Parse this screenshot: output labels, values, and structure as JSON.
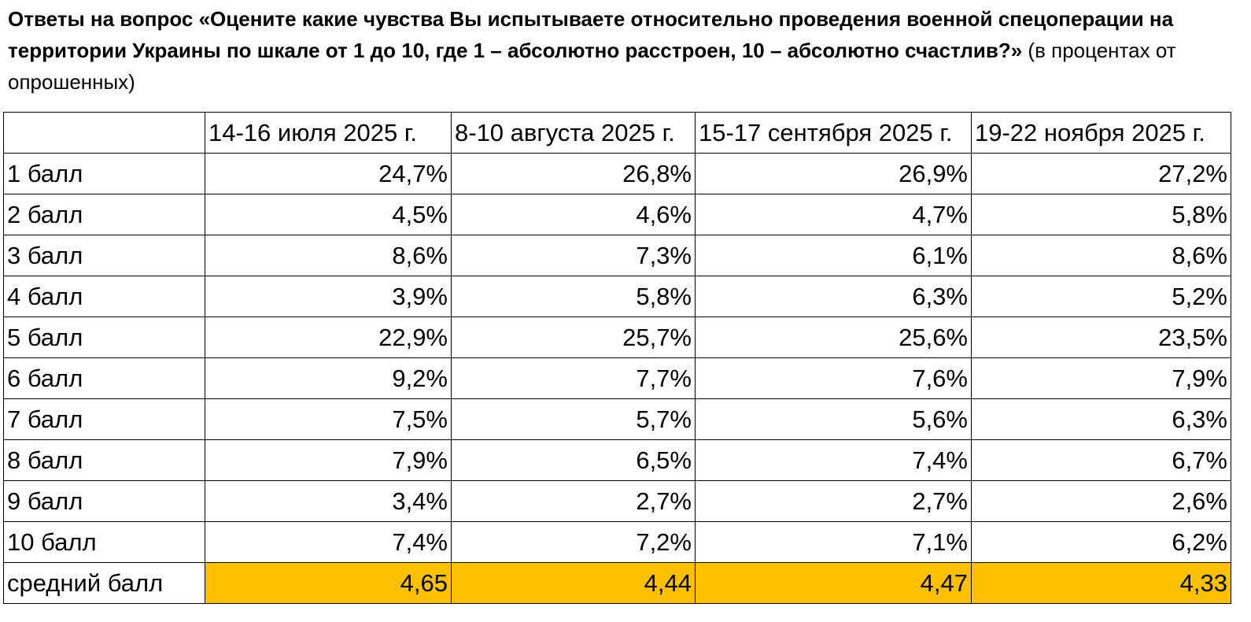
{
  "heading": {
    "question_bold": "Ответы на вопрос «Оцените какие чувства Вы испытываете относительно проведения военной спецоперации на территории Украины по шкале от 1 до 10, где 1 – абсолютно расстроен, 10 – абсолютно счастлив?»",
    "question_note": "(в процентах от опрошенных)"
  },
  "table": {
    "corner_label": "",
    "columns": [
      "14-16 июля 2025 г.",
      "8-10 августа 2025 г.",
      "15-17 сентября 2025 г.",
      "19-22 ноября 2025 г."
    ],
    "rows": [
      {
        "label": "1 балл",
        "values": [
          "24,7%",
          "26,8%",
          "26,9%",
          "27,2%"
        ]
      },
      {
        "label": "2 балл",
        "values": [
          "4,5%",
          "4,6%",
          "4,7%",
          "5,8%"
        ]
      },
      {
        "label": "3 балл",
        "values": [
          "8,6%",
          "7,3%",
          "6,1%",
          "8,6%"
        ]
      },
      {
        "label": "4 балл",
        "values": [
          "3,9%",
          "5,8%",
          "6,3%",
          "5,2%"
        ]
      },
      {
        "label": "5 балл",
        "values": [
          "22,9%",
          "25,7%",
          "25,6%",
          "23,5%"
        ]
      },
      {
        "label": "6 балл",
        "values": [
          "9,2%",
          "7,7%",
          "7,6%",
          "7,9%"
        ]
      },
      {
        "label": "7 балл",
        "values": [
          "7,5%",
          "5,7%",
          "5,6%",
          "6,3%"
        ]
      },
      {
        "label": "8 балл",
        "values": [
          "7,9%",
          "6,5%",
          "7,4%",
          "6,7%"
        ]
      },
      {
        "label": "9 балл",
        "values": [
          "3,4%",
          "2,7%",
          "2,7%",
          "2,6%"
        ]
      },
      {
        "label": "10 балл",
        "values": [
          "7,4%",
          "7,2%",
          "7,1%",
          "6,2%"
        ]
      }
    ],
    "mean_row": {
      "label": "средний балл",
      "values": [
        "4,65",
        "4,44",
        "4,47",
        "4,33"
      ],
      "highlight_color": "#ffc000"
    }
  }
}
